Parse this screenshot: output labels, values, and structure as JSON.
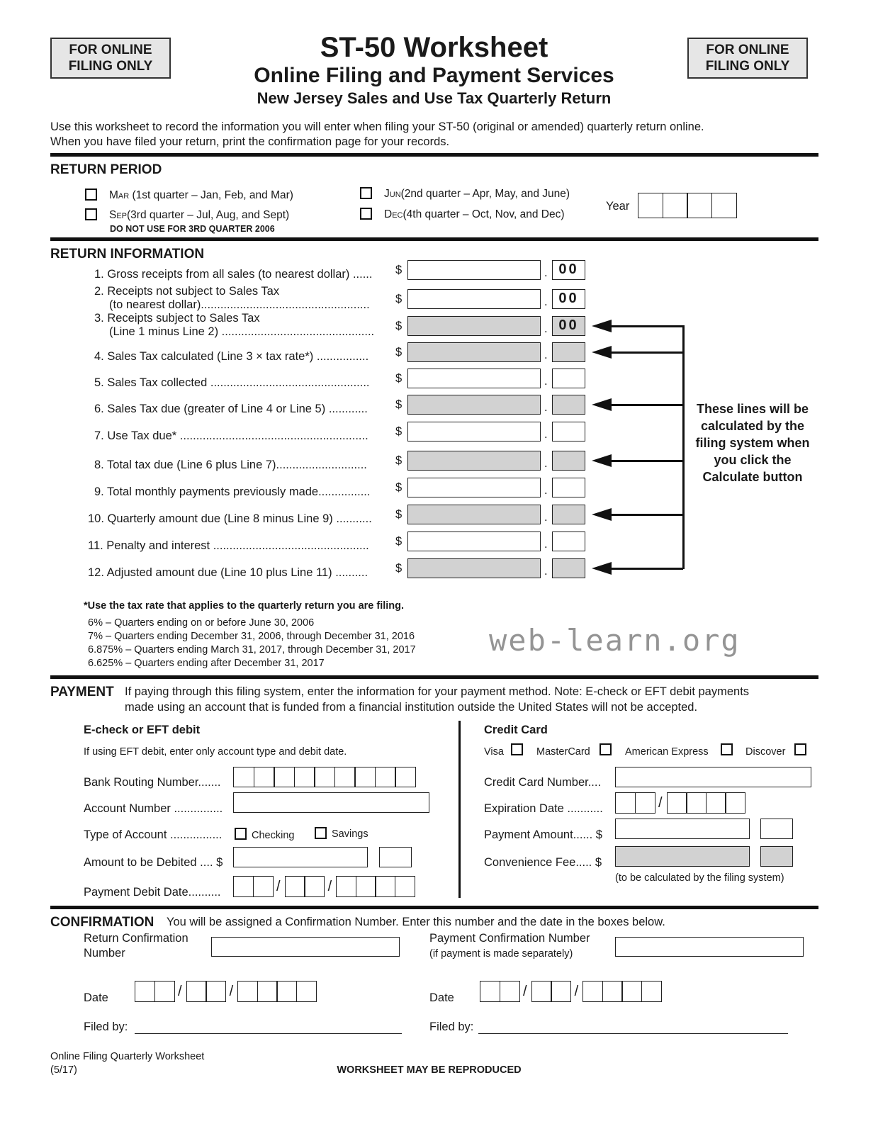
{
  "header": {
    "badge_left": "FOR ONLINE FILING ONLY",
    "badge_right": "FOR ONLINE FILING ONLY",
    "title": "ST-50 Worksheet",
    "subtitle": "Online Filing and Payment Services",
    "subtitle2": "New Jersey Sales and Use Tax Quarterly Return"
  },
  "intro": [
    "Use this worksheet to record the information you will enter when filing your ST-50 (original or amended) quarterly return online.",
    "When you have filed your return, print the confirmation page for your records."
  ],
  "return_period": {
    "heading": "RETURN PERIOD",
    "options": [
      {
        "abbr": "Mar",
        "desc": " (1st quarter – Jan, Feb, and Mar)"
      },
      {
        "abbr": "Jun",
        "desc": "(2nd quarter – Apr, May, and June)"
      },
      {
        "abbr": "Sep",
        "desc": "(3rd quarter – Jul, Aug, and Sept)"
      },
      {
        "abbr": "Dec",
        "desc": "(4th quarter – Oct, Nov, and Dec)"
      }
    ],
    "note": "DO NOT USE FOR 3RD QUARTER 2006",
    "year_label": "Year"
  },
  "return_info": {
    "heading": "RETURN INFORMATION",
    "lines": [
      {
        "label": "1. Gross receipts from all sales (to nearest dollar) ......",
        "cents": "00",
        "calculated": false
      },
      {
        "label": "2. Receipts not subject to Sales Tax",
        "label2": "(to nearest dollar)....................................................",
        "cents": "00",
        "calculated": false
      },
      {
        "label": "3. Receipts subject to Sales Tax",
        "label2": "(Line 1 minus Line 2) ...............................................",
        "cents": "00",
        "calculated": true
      },
      {
        "label": "4. Sales Tax calculated (Line 3 × tax rate*) ................",
        "cents": "",
        "calculated": true
      },
      {
        "label": "5. Sales Tax collected .................................................",
        "cents": "",
        "calculated": false
      },
      {
        "label": "6. Sales Tax due (greater of Line 4 or Line 5) ............",
        "cents": "",
        "calculated": true
      },
      {
        "label": "7. Use Tax due* ..........................................................",
        "cents": "",
        "calculated": false
      },
      {
        "label": "8. Total tax due (Line 6 plus Line 7)............................",
        "cents": "",
        "calculated": true
      },
      {
        "label": "9. Total monthly payments previously made................",
        "cents": "",
        "calculated": false
      },
      {
        "label": "10. Quarterly amount due (Line 8 minus Line 9) ...........",
        "cents": "",
        "calculated": true
      },
      {
        "label": "11. Penalty and interest ................................................",
        "cents": "",
        "calculated": false
      },
      {
        "label": "12. Adjusted amount due (Line 10 plus Line 11)  ..........",
        "cents": "",
        "calculated": true
      }
    ],
    "dollar": "$",
    "dot": ".",
    "callout": "These lines will be calculated by the filing system when you click the Calculate button",
    "rate_note": "*Use the tax rate that applies to the quarterly return you are filing.",
    "rates": [
      "6% – Quarters ending on or before June 30, 2006",
      "7% – Quarters ending December 31, 2006, through December 31, 2016",
      "6.875% – Quarters ending March 31, 2017, through December 31, 2017",
      "6.625% – Quarters ending after December 31, 2017"
    ]
  },
  "watermark": "web-learn.org",
  "payment": {
    "heading": "PAYMENT",
    "text1": "If paying through this filing system, enter the information for your payment method. Note:  E-check or EFT debit payments",
    "text2": "made using an account that is funded from a financial institution outside the United States will not be accepted.",
    "eft": {
      "heading": "E-check or EFT debit",
      "note": "If using EFT debit, enter only account type and debit date.",
      "routing": "Bank Routing Number.......",
      "account": "Account Number ...............",
      "type": "Type of Account ................",
      "checking": "Checking",
      "savings": "Savings",
      "amount": "Amount to be Debited .... $",
      "date": "Payment Debit Date.........."
    },
    "card": {
      "heading": "Credit Card",
      "types": [
        "Visa",
        "MasterCard",
        "American Express",
        "Discover"
      ],
      "number": "Credit Card Number....",
      "expiration": "Expiration Date ...........",
      "amount": "Payment Amount...... $",
      "fee": "Convenience Fee..... $",
      "fee_note": "(to be calculated by the filing system)"
    }
  },
  "confirmation": {
    "heading": "CONFIRMATION",
    "text": "You will be assigned a Confirmation Number. Enter this number and the date in the boxes below.",
    "return_conf": "Return Confirmation",
    "return_conf2": "Number",
    "payment_conf": "Payment Confirmation Number",
    "payment_conf2": "(if payment is made separately)",
    "date": "Date",
    "filed_by": "Filed by:",
    "slash": "/"
  },
  "footer": {
    "left1": "Online Filing Quarterly Worksheet",
    "left2": "(5/17)",
    "center": "WORKSHEET MAY BE REPRODUCED"
  }
}
